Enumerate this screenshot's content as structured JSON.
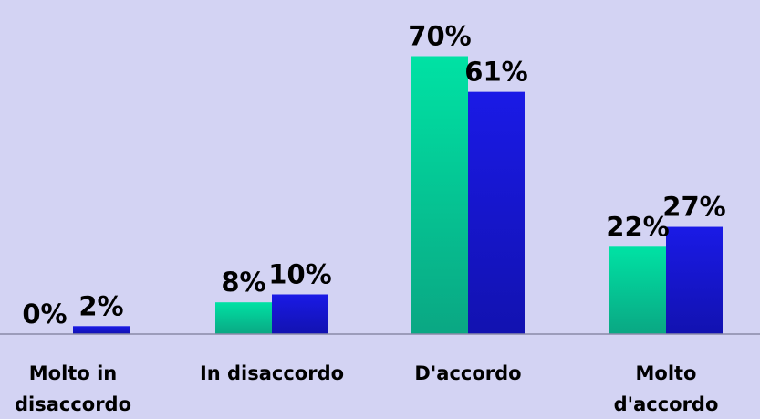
{
  "chart_data": {
    "type": "bar",
    "categories": [
      [
        "Molto in",
        "disaccordo"
      ],
      [
        "In disaccordo"
      ],
      [
        "D'accordo"
      ],
      [
        "Molto",
        "d'accordo"
      ]
    ],
    "series": [
      {
        "values": [
          0,
          8,
          70,
          22
        ],
        "labels": [
          "0%",
          "8%",
          "70%",
          "22%"
        ]
      },
      {
        "values": [
          2,
          10,
          61,
          27
        ],
        "labels": [
          "2%",
          "10%",
          "61%",
          "27%"
        ]
      }
    ],
    "ylim": [
      0,
      80
    ],
    "grid": false,
    "legend": "none",
    "colors": {
      "background": "#d3d3f3",
      "series1_top": "#00e2a4",
      "series1_bottom": "#0aa783",
      "series2_top": "#1a1ae6",
      "series2_bottom": "#1212b0",
      "axis": "#8a8aa8"
    }
  }
}
